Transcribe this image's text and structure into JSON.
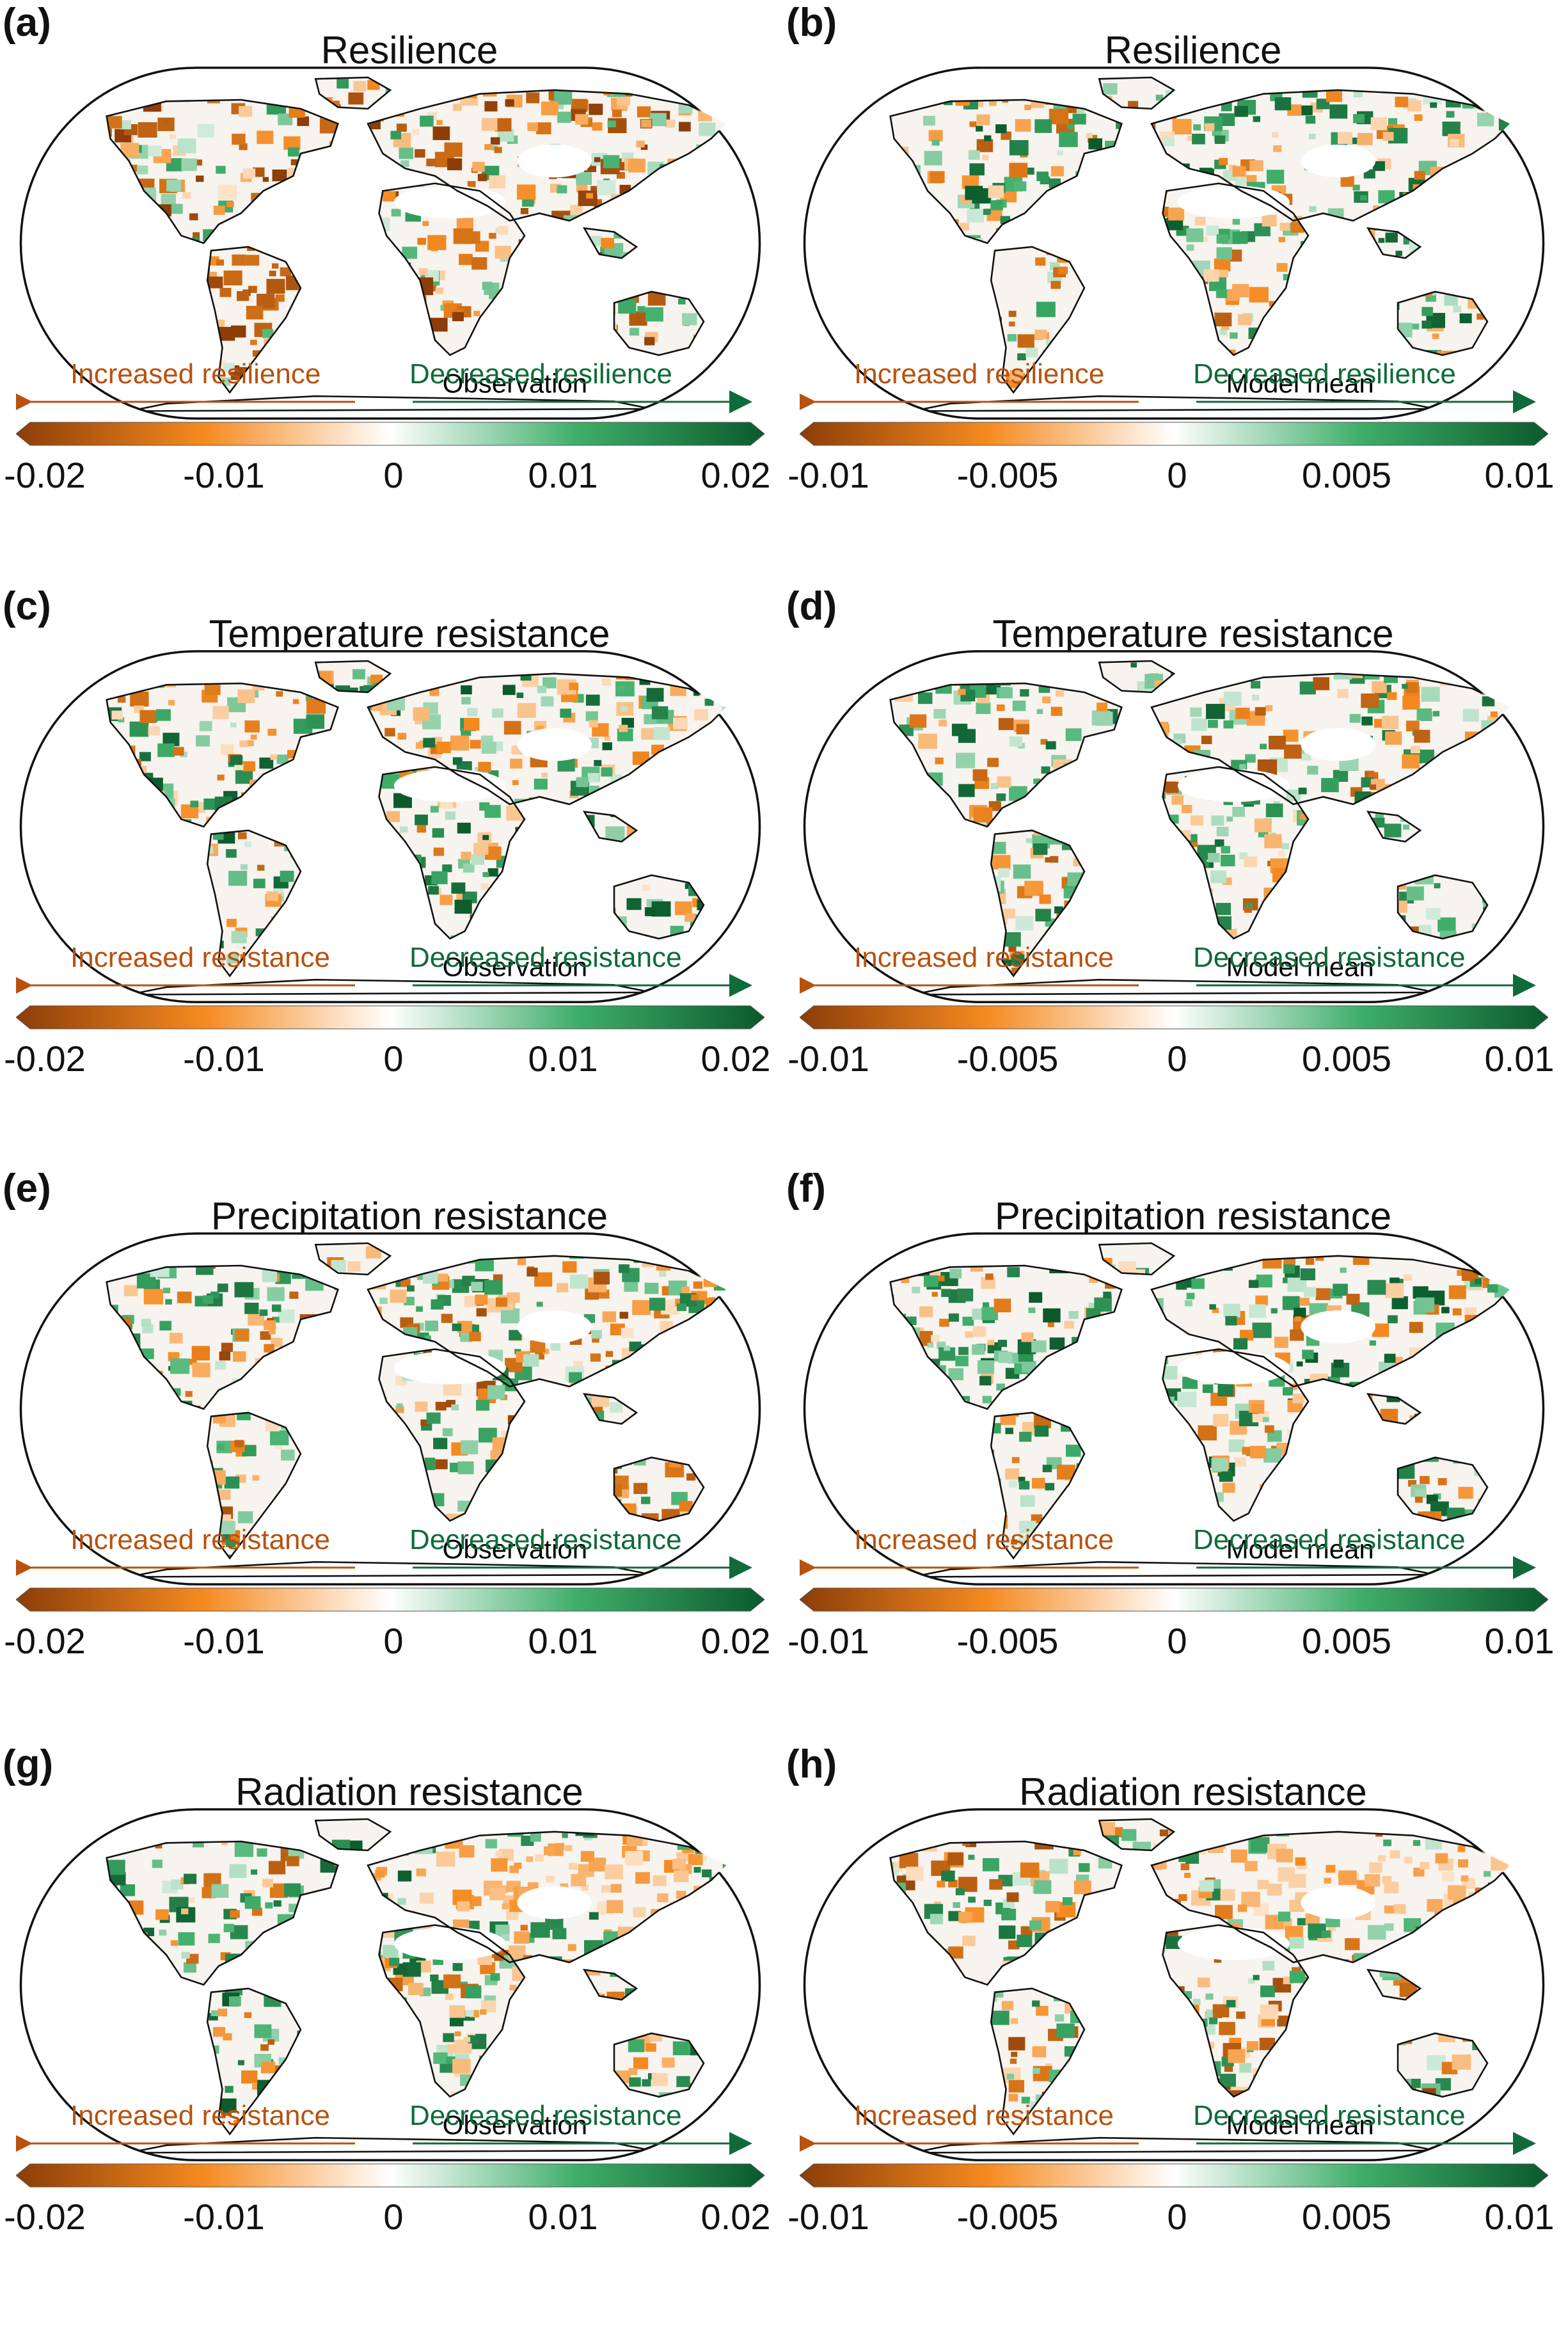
{
  "figure": {
    "panels": [
      {
        "label": "(a)",
        "title": "Resilience",
        "caption": "Observation",
        "inc": "Increased resilience",
        "dec": "Decreased resilience",
        "ticks": [
          "-0.02",
          "-0.01",
          "0",
          "0.01",
          "0.02"
        ],
        "variant": 0
      },
      {
        "label": "(b)",
        "title": "Resilience",
        "caption": "Model mean",
        "inc": "Increased resilience",
        "dec": "Decreased resilience",
        "ticks": [
          "-0.01",
          "-0.005",
          "0",
          "0.005",
          "0.01"
        ],
        "variant": 1
      },
      {
        "label": "(c)",
        "title": "Temperature resistance",
        "caption": "Observation",
        "inc": "Increased resistance",
        "dec": "Decreased resistance",
        "ticks": [
          "-0.02",
          "-0.01",
          "0",
          "0.01",
          "0.02"
        ],
        "variant": 2
      },
      {
        "label": "(d)",
        "title": "Temperature resistance",
        "caption": "Model mean",
        "inc": "Increased resistance",
        "dec": "Decreased resistance",
        "ticks": [
          "-0.01",
          "-0.005",
          "0",
          "0.005",
          "0.01"
        ],
        "variant": 3
      },
      {
        "label": "(e)",
        "title": "Precipitation resistance",
        "caption": "Observation",
        "inc": "Increased resistance",
        "dec": "Decreased resistance",
        "ticks": [
          "-0.02",
          "-0.01",
          "0",
          "0.01",
          "0.02"
        ],
        "variant": 4
      },
      {
        "label": "(f)",
        "title": "Precipitation resistance",
        "caption": "Model mean",
        "inc": "Increased resistance",
        "dec": "Decreased resistance",
        "ticks": [
          "-0.01",
          "-0.005",
          "0",
          "0.005",
          "0.01"
        ],
        "variant": 5
      },
      {
        "label": "(g)",
        "title": "Radiation resistance",
        "caption": "Observation",
        "inc": "Increased resistance",
        "dec": "Decreased resistance",
        "ticks": [
          "-0.02",
          "-0.01",
          "0",
          "0.01",
          "0.02"
        ],
        "variant": 6
      },
      {
        "label": "(h)",
        "title": "Radiation resistance",
        "caption": "Model mean",
        "inc": "Increased resistance",
        "dec": "Decreased resistance",
        "ticks": [
          "-0.01",
          "-0.005",
          "0",
          "0.005",
          "0.01"
        ],
        "variant": 7
      }
    ]
  },
  "colors": {
    "increase_dark": "#8c3d08",
    "increase_mid": "#f58a1f",
    "neutral": "#ffffff",
    "decrease_mid": "#3fae6a",
    "decrease_dark": "#0b5a2c",
    "inc_text": "#b8520f",
    "dec_text": "#0f6b3a"
  }
}
